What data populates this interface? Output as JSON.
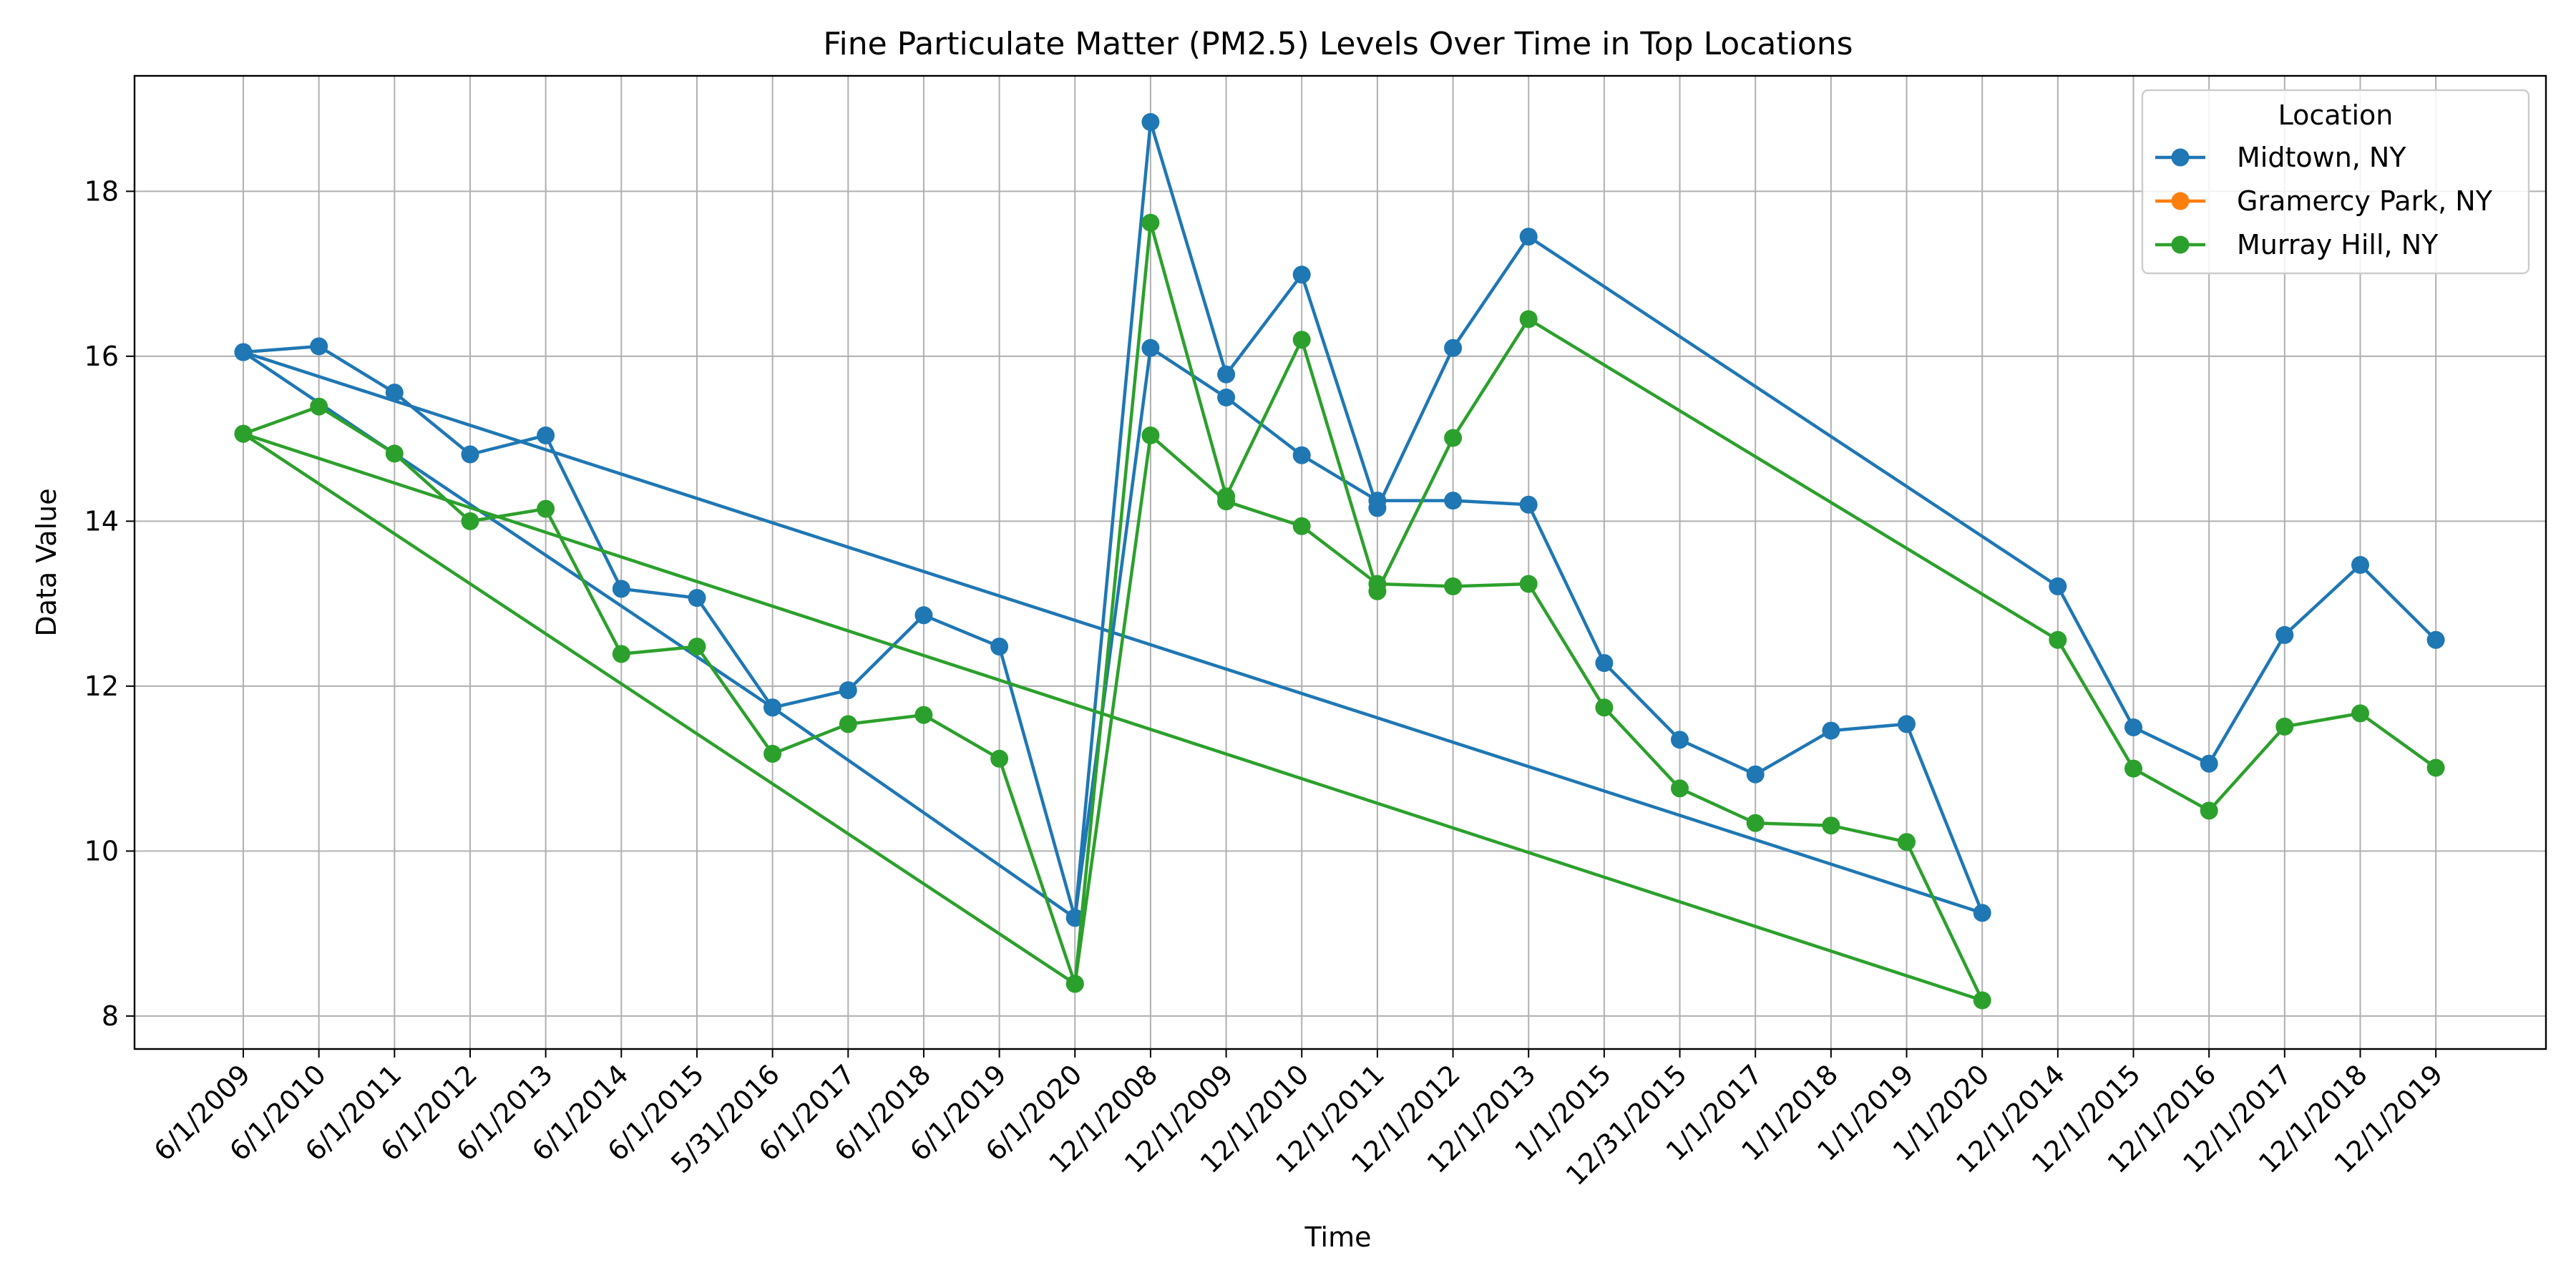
{
  "chart_data": {
    "type": "line",
    "title": "Fine Particulate Matter (PM2.5) Levels Over Time in Top Locations",
    "xlabel": "Time",
    "ylabel": "Data Value",
    "ylim": [
      7.6,
      19.4
    ],
    "yticks": [
      8,
      10,
      12,
      14,
      16,
      18
    ],
    "grid": true,
    "legend": {
      "title": "Location",
      "placement": "top-right"
    },
    "categories": [
      "6/1/2009",
      "6/1/2010",
      "6/1/2011",
      "6/1/2012",
      "6/1/2013",
      "6/1/2014",
      "6/1/2015",
      "5/31/2016",
      "6/1/2017",
      "6/1/2018",
      "6/1/2019",
      "6/1/2020",
      "12/1/2008",
      "12/1/2009",
      "12/1/2010",
      "12/1/2011",
      "12/1/2012",
      "12/1/2013",
      "1/1/2015",
      "12/31/2015",
      "1/1/2017",
      "1/1/2018",
      "1/1/2019",
      "1/1/2020",
      "12/1/2014",
      "12/1/2015",
      "12/1/2016",
      "12/1/2017",
      "12/1/2018",
      "12/1/2019"
    ],
    "series": [
      {
        "name": "Midtown, NY",
        "color": "#1f77b4",
        "points": [
          [
            "6/1/2009",
            16.05
          ],
          [
            "6/1/2010",
            16.12
          ],
          [
            "6/1/2011",
            15.56
          ],
          [
            "6/1/2012",
            14.81
          ],
          [
            "6/1/2013",
            15.04
          ],
          [
            "6/1/2014",
            13.18
          ],
          [
            "6/1/2015",
            13.07
          ],
          [
            "5/31/2016",
            11.74
          ],
          [
            "6/1/2017",
            11.95
          ],
          [
            "6/1/2018",
            12.86
          ],
          [
            "6/1/2019",
            12.48
          ],
          [
            "6/1/2020",
            9.19
          ],
          [
            "12/1/2008",
            16.1
          ],
          [
            "12/1/2009",
            15.5
          ],
          [
            "12/1/2010",
            14.8
          ],
          [
            "12/1/2011",
            14.25
          ],
          [
            "12/1/2012",
            14.25
          ],
          [
            "12/1/2013",
            14.2
          ],
          [
            "1/1/2015",
            12.28
          ],
          [
            "12/31/2015",
            11.35
          ],
          [
            "1/1/2017",
            10.93
          ],
          [
            "1/1/2018",
            11.46
          ],
          [
            "1/1/2019",
            11.54
          ],
          [
            "1/1/2020",
            9.25
          ],
          [
            "6/1/2009",
            16.05
          ],
          [
            "5/31/2016",
            11.74
          ],
          [
            "6/1/2020",
            9.19
          ],
          [
            "12/1/2008",
            18.84
          ],
          [
            "12/1/2009",
            15.78
          ],
          [
            "12/1/2010",
            16.99
          ],
          [
            "12/1/2011",
            14.16
          ],
          [
            "12/1/2012",
            16.1
          ],
          [
            "12/1/2013",
            17.45
          ],
          [
            "12/1/2014",
            13.21
          ],
          [
            "12/1/2015",
            11.5
          ],
          [
            "12/1/2016",
            11.06
          ],
          [
            "12/1/2017",
            12.62
          ],
          [
            "12/1/2018",
            13.47
          ],
          [
            "12/1/2019",
            12.56
          ]
        ]
      },
      {
        "name": "Gramercy Park, NY",
        "color": "#ff7f0e",
        "points": []
      },
      {
        "name": "Murray Hill, NY",
        "color": "#2ca02c",
        "points": [
          [
            "6/1/2009",
            15.06
          ],
          [
            "6/1/2010",
            15.39
          ],
          [
            "6/1/2011",
            14.82
          ],
          [
            "6/1/2012",
            14.0
          ],
          [
            "6/1/2013",
            14.15
          ],
          [
            "6/1/2014",
            12.39
          ],
          [
            "6/1/2015",
            12.48
          ],
          [
            "5/31/2016",
            11.18
          ],
          [
            "6/1/2017",
            11.54
          ],
          [
            "6/1/2018",
            11.65
          ],
          [
            "6/1/2019",
            11.12
          ],
          [
            "6/1/2020",
            8.39
          ],
          [
            "12/1/2008",
            15.04
          ],
          [
            "12/1/2009",
            14.24
          ],
          [
            "12/1/2010",
            13.94
          ],
          [
            "12/1/2011",
            13.24
          ],
          [
            "12/1/2012",
            13.21
          ],
          [
            "12/1/2013",
            13.24
          ],
          [
            "1/1/2015",
            11.74
          ],
          [
            "12/31/2015",
            10.76
          ],
          [
            "1/1/2017",
            10.34
          ],
          [
            "1/1/2018",
            10.31
          ],
          [
            "1/1/2019",
            10.11
          ],
          [
            "1/1/2020",
            8.19
          ],
          [
            "6/1/2009",
            15.06
          ],
          [
            "6/1/2020",
            8.39
          ],
          [
            "12/1/2008",
            17.62
          ],
          [
            "12/1/2009",
            14.3
          ],
          [
            "12/1/2010",
            16.2
          ],
          [
            "12/1/2011",
            13.15
          ],
          [
            "12/1/2012",
            15.01
          ],
          [
            "12/1/2013",
            16.45
          ],
          [
            "12/1/2014",
            12.56
          ],
          [
            "12/1/2015",
            11.0
          ],
          [
            "12/1/2016",
            10.49
          ],
          [
            "12/1/2017",
            11.51
          ],
          [
            "12/1/2018",
            11.67
          ],
          [
            "12/1/2019",
            11.01
          ]
        ]
      }
    ]
  }
}
